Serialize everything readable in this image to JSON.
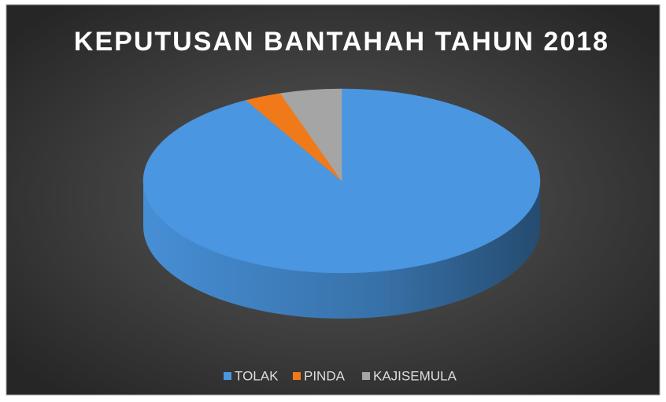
{
  "chart_data": {
    "type": "pie3d",
    "title": "KEPUTUSAN BANTAHAH TAHUN 2018",
    "categories": [
      "TOLAK",
      "PINDA",
      "KAJISEMULA"
    ],
    "values": [
      92,
      3,
      5
    ],
    "colors": [
      "#4a96e0",
      "#f07a1a",
      "#a5a5a5"
    ],
    "legend": "bottom"
  }
}
